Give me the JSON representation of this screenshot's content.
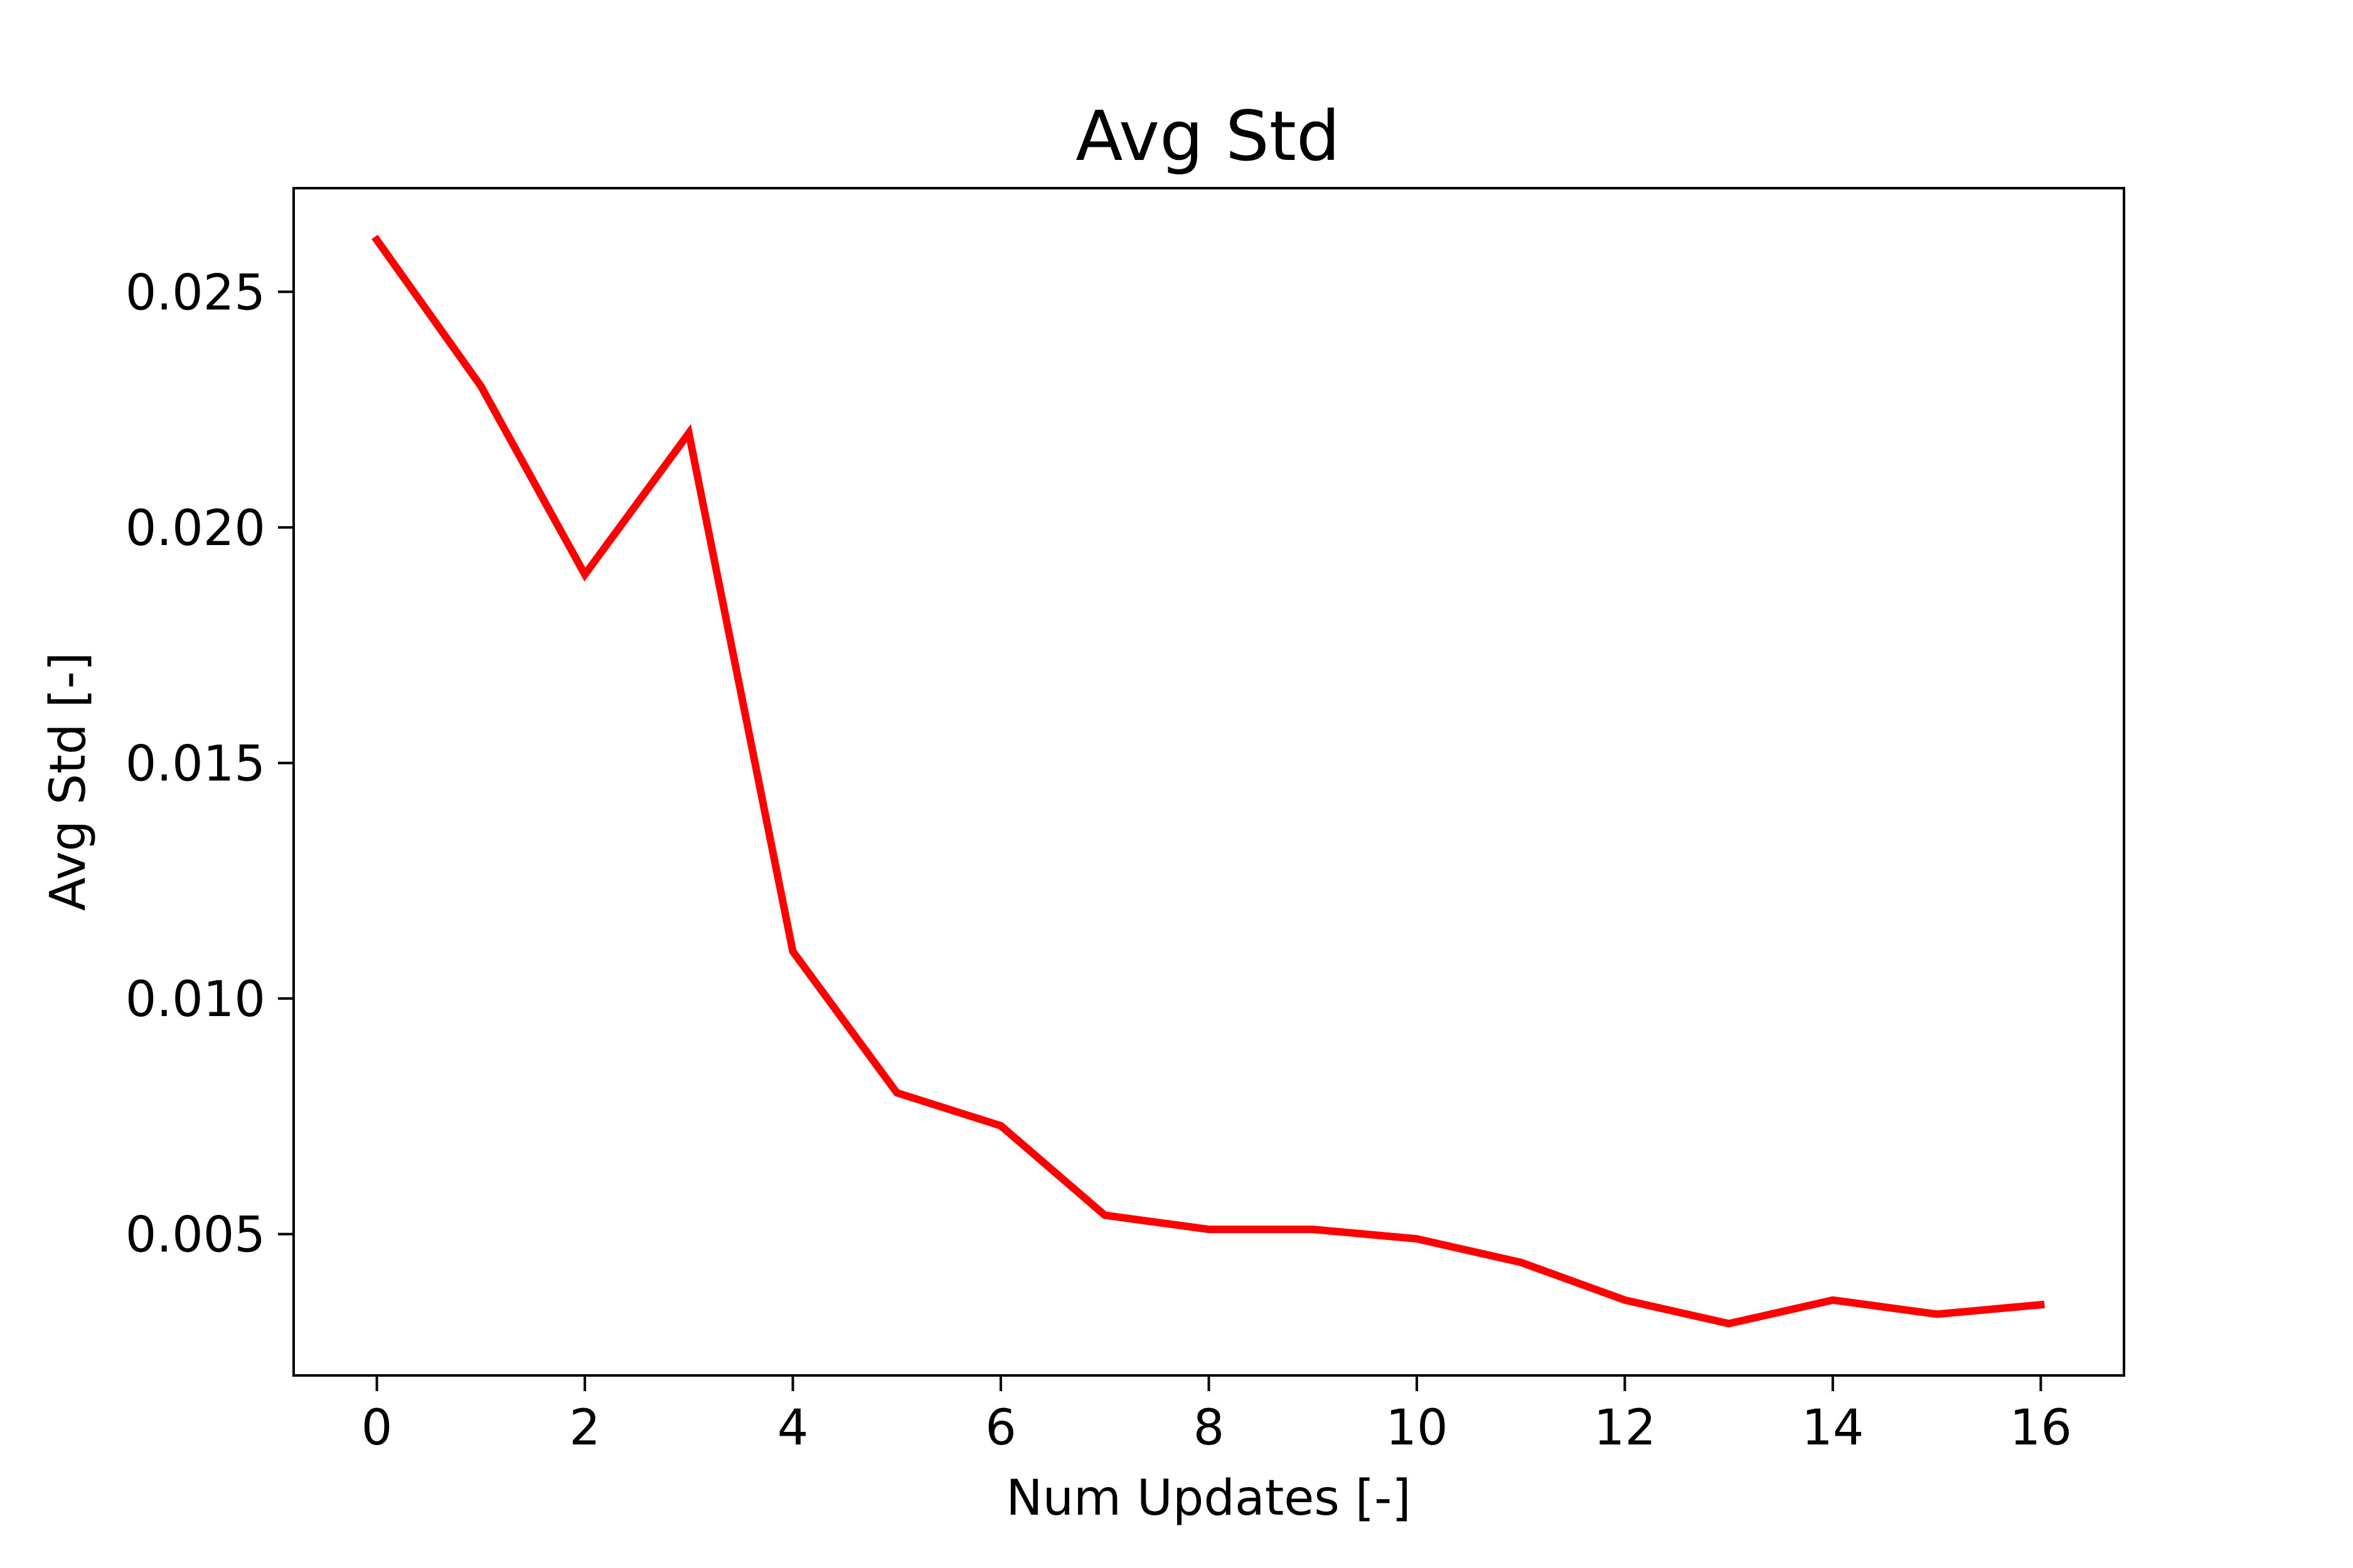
{
  "chart_data": {
    "type": "line",
    "title": "Avg Std",
    "xlabel": "Num Updates [-]",
    "ylabel": "Avg Std [-]",
    "xlim": [
      -0.8,
      16.8
    ],
    "ylim": [
      0.002,
      0.0272
    ],
    "x_ticks": [
      0,
      2,
      4,
      6,
      8,
      10,
      12,
      14,
      16
    ],
    "x_tick_labels": [
      "0",
      "2",
      "4",
      "6",
      "8",
      "10",
      "12",
      "14",
      "16"
    ],
    "y_ticks": [
      0.005,
      0.01,
      0.015,
      0.02,
      0.025
    ],
    "y_tick_labels": [
      "0.005",
      "0.010",
      "0.015",
      "0.020",
      "0.025"
    ],
    "grid": false,
    "series": [
      {
        "color": "#ff0000",
        "x": [
          0,
          1,
          2,
          3,
          4,
          5,
          6,
          7,
          8,
          9,
          10,
          11,
          12,
          13,
          14,
          15,
          16
        ],
        "y": [
          0.0261,
          0.023,
          0.019,
          0.022,
          0.011,
          0.008,
          0.0073,
          0.0054,
          0.0051,
          0.0051,
          0.0049,
          0.0044,
          0.0036,
          0.0031,
          0.0036,
          0.0033,
          0.0035
        ]
      }
    ]
  }
}
